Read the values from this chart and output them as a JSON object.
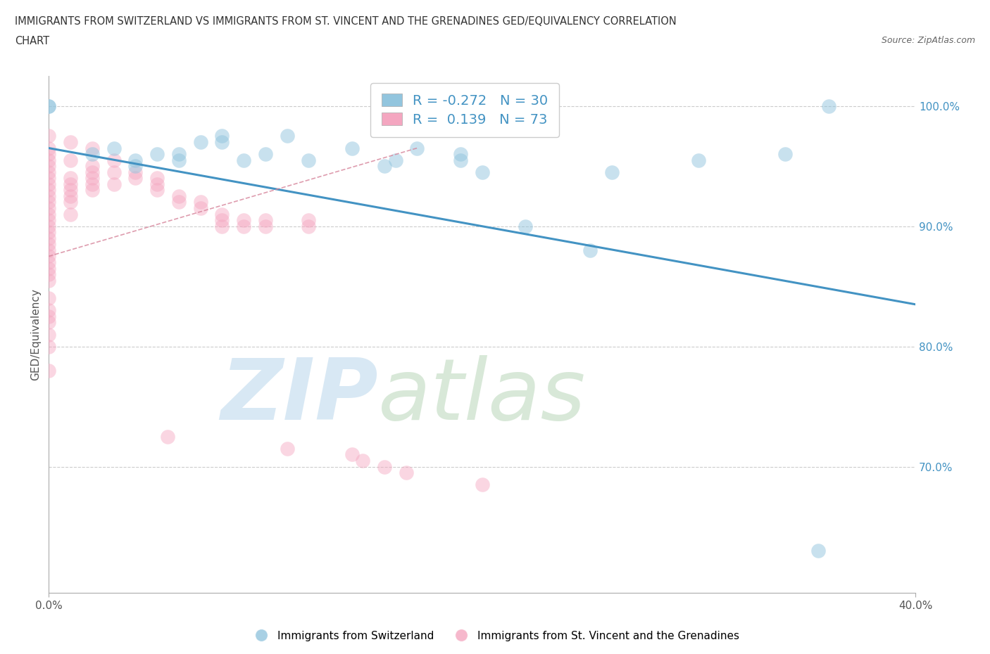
{
  "title_line1": "IMMIGRANTS FROM SWITZERLAND VS IMMIGRANTS FROM ST. VINCENT AND THE GRENADINES GED/EQUIVALENCY CORRELATION",
  "title_line2": "CHART",
  "source": "Source: ZipAtlas.com",
  "ylabel": "GED/Equivalency",
  "xlim": [
    0.0,
    0.4
  ],
  "ylim": [
    0.595,
    1.025
  ],
  "xticklabels": [
    "0.0%",
    "40.0%"
  ],
  "yticklabels": [
    "100.0%",
    "90.0%",
    "80.0%",
    "70.0%"
  ],
  "ytick_positions": [
    1.0,
    0.9,
    0.8,
    0.7
  ],
  "xtick_positions": [
    0.0,
    0.4
  ],
  "blue_R": -0.272,
  "blue_N": 30,
  "pink_R": 0.139,
  "pink_N": 73,
  "blue_color": "#92c5de",
  "pink_color": "#f4a6c0",
  "blue_line_color": "#4393c3",
  "pink_line_color": "#d6849a",
  "blue_line_x": [
    0.0,
    0.4
  ],
  "blue_line_y": [
    0.965,
    0.835
  ],
  "pink_line_x": [
    0.0,
    0.17
  ],
  "pink_line_y": [
    0.875,
    0.965
  ],
  "blue_scatter_x": [
    0.0,
    0.0,
    0.02,
    0.03,
    0.04,
    0.04,
    0.05,
    0.06,
    0.06,
    0.07,
    0.08,
    0.08,
    0.09,
    0.1,
    0.11,
    0.12,
    0.14,
    0.155,
    0.16,
    0.17,
    0.19,
    0.19,
    0.2,
    0.22,
    0.25,
    0.26,
    0.3,
    0.34,
    0.355,
    0.36
  ],
  "blue_scatter_y": [
    1.0,
    1.0,
    0.96,
    0.965,
    0.955,
    0.95,
    0.96,
    0.96,
    0.955,
    0.97,
    0.975,
    0.97,
    0.955,
    0.96,
    0.975,
    0.955,
    0.965,
    0.95,
    0.955,
    0.965,
    0.96,
    0.955,
    0.945,
    0.9,
    0.88,
    0.945,
    0.955,
    0.96,
    0.63,
    1.0
  ],
  "pink_scatter_x": [
    0.0,
    0.0,
    0.0,
    0.0,
    0.0,
    0.0,
    0.0,
    0.0,
    0.0,
    0.0,
    0.0,
    0.0,
    0.0,
    0.0,
    0.0,
    0.0,
    0.0,
    0.0,
    0.0,
    0.0,
    0.0,
    0.0,
    0.0,
    0.0,
    0.0,
    0.0,
    0.0,
    0.0,
    0.0,
    0.0,
    0.0,
    0.01,
    0.01,
    0.01,
    0.01,
    0.01,
    0.01,
    0.01,
    0.01,
    0.02,
    0.02,
    0.02,
    0.02,
    0.02,
    0.02,
    0.03,
    0.03,
    0.03,
    0.04,
    0.04,
    0.05,
    0.05,
    0.05,
    0.055,
    0.06,
    0.06,
    0.07,
    0.07,
    0.08,
    0.08,
    0.08,
    0.09,
    0.09,
    0.1,
    0.1,
    0.11,
    0.12,
    0.12,
    0.14,
    0.145,
    0.155,
    0.165,
    0.2
  ],
  "pink_scatter_y": [
    0.975,
    0.965,
    0.96,
    0.955,
    0.95,
    0.945,
    0.94,
    0.935,
    0.93,
    0.925,
    0.92,
    0.915,
    0.91,
    0.905,
    0.9,
    0.895,
    0.89,
    0.885,
    0.88,
    0.875,
    0.87,
    0.865,
    0.86,
    0.855,
    0.84,
    0.83,
    0.825,
    0.82,
    0.81,
    0.8,
    0.78,
    0.97,
    0.955,
    0.94,
    0.935,
    0.93,
    0.925,
    0.92,
    0.91,
    0.965,
    0.95,
    0.945,
    0.94,
    0.935,
    0.93,
    0.955,
    0.945,
    0.935,
    0.945,
    0.94,
    0.94,
    0.935,
    0.93,
    0.725,
    0.925,
    0.92,
    0.92,
    0.915,
    0.91,
    0.905,
    0.9,
    0.905,
    0.9,
    0.905,
    0.9,
    0.715,
    0.905,
    0.9,
    0.71,
    0.705,
    0.7,
    0.695,
    0.685
  ],
  "legend_label_blue": "Immigrants from Switzerland",
  "legend_label_pink": "Immigrants from St. Vincent and the Grenadines"
}
